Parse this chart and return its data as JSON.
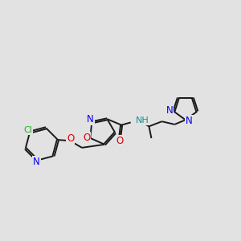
{
  "bg_color": "#e2e2e2",
  "bond_color": "#1a1a1a",
  "bond_width": 1.4,
  "dbo": 0.06,
  "atom_colors": {
    "N": "#0000ee",
    "O": "#dd0000",
    "Cl": "#22aa22",
    "H_color": "#1a9090"
  },
  "fs": 8.5
}
